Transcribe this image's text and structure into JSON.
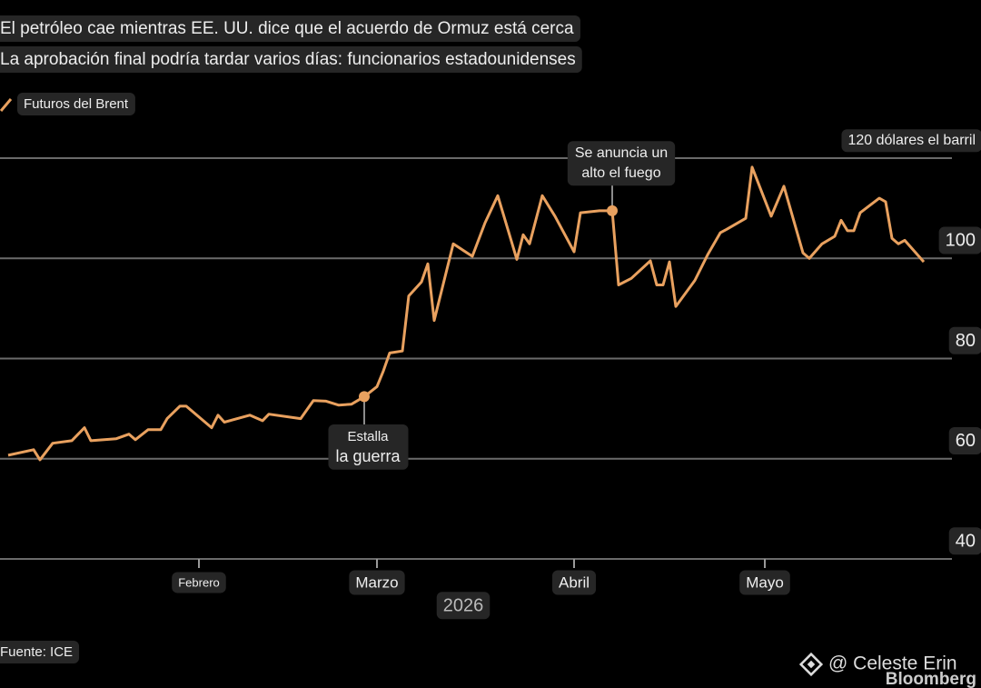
{
  "chart_data": {
    "type": "line",
    "title": "El petróleo cae mientras EE. UU. dice que el acuerdo de Ormuz está cerca",
    "subtitle": "La aprobación final podría tardar varios días: funcionarios estadounidenses",
    "x_label": "2026",
    "source": "Fuente: ICE",
    "watermark": "@ Celeste Erin",
    "brand": "Bloomberg",
    "x": [
      2,
      6,
      7,
      9,
      12,
      14,
      15,
      19,
      21,
      22,
      24,
      26,
      27,
      29,
      30,
      34,
      35,
      36,
      40,
      42,
      43,
      48,
      50,
      52,
      54,
      56,
      58,
      60,
      61,
      62,
      64,
      65,
      67,
      68,
      69,
      72,
      75,
      77,
      79,
      82,
      83,
      84,
      86,
      88,
      91,
      92,
      95,
      97,
      98,
      100,
      103,
      104,
      105,
      106,
      107,
      110,
      112,
      114,
      115,
      118,
      119,
      122,
      124,
      127,
      128,
      130,
      132,
      133,
      134,
      135,
      136,
      139,
      140,
      141,
      142,
      143,
      146
    ],
    "series": [
      {
        "name": "Futuros del Brent",
        "color": "#e9a15f",
        "values": [
          60.7,
          61.8,
          59.8,
          63.1,
          63.6,
          66.2,
          63.6,
          64.0,
          64.9,
          63.8,
          65.8,
          65.8,
          68.0,
          70.5,
          70.5,
          66.2,
          68.7,
          67.3,
          68.7,
          67.6,
          68.9,
          68.0,
          71.6,
          71.5,
          70.7,
          70.9,
          72.4,
          74.4,
          77.5,
          81.1,
          81.5,
          92.5,
          95.3,
          98.9,
          87.6,
          102.9,
          100.4,
          107.1,
          112.5,
          99.8,
          104.7,
          102.9,
          112.5,
          108.4,
          101.3,
          109.1,
          109.5,
          109.5,
          94.7,
          96.0,
          99.5,
          94.7,
          94.7,
          99.3,
          90.4,
          95.6,
          100.7,
          105.1,
          105.8,
          108.0,
          118.2,
          108.4,
          114.4,
          101.1,
          100.0,
          102.9,
          104.4,
          107.6,
          105.5,
          105.5,
          109.1,
          112.0,
          111.3,
          104.0,
          102.9,
          103.6,
          99.3
        ]
      }
    ],
    "xlim": [
      1,
      150
    ],
    "xticks": [
      {
        "value": 32,
        "label": "Febrero"
      },
      {
        "value": 60,
        "label": "Marzo"
      },
      {
        "value": 91,
        "label": "Abril"
      },
      {
        "value": 121,
        "label": "Mayo"
      }
    ],
    "ylim": [
      40,
      120
    ],
    "yticks": [
      40,
      60,
      80,
      100,
      {
        "value": 120,
        "label": "120 dólares el barril"
      }
    ],
    "grid": true,
    "annotations": [
      {
        "lines": [
          "Estalla",
          "la guerra"
        ]
      },
      {
        "lines": [
          "Se anuncia un",
          "alto el fuego"
        ]
      }
    ]
  }
}
